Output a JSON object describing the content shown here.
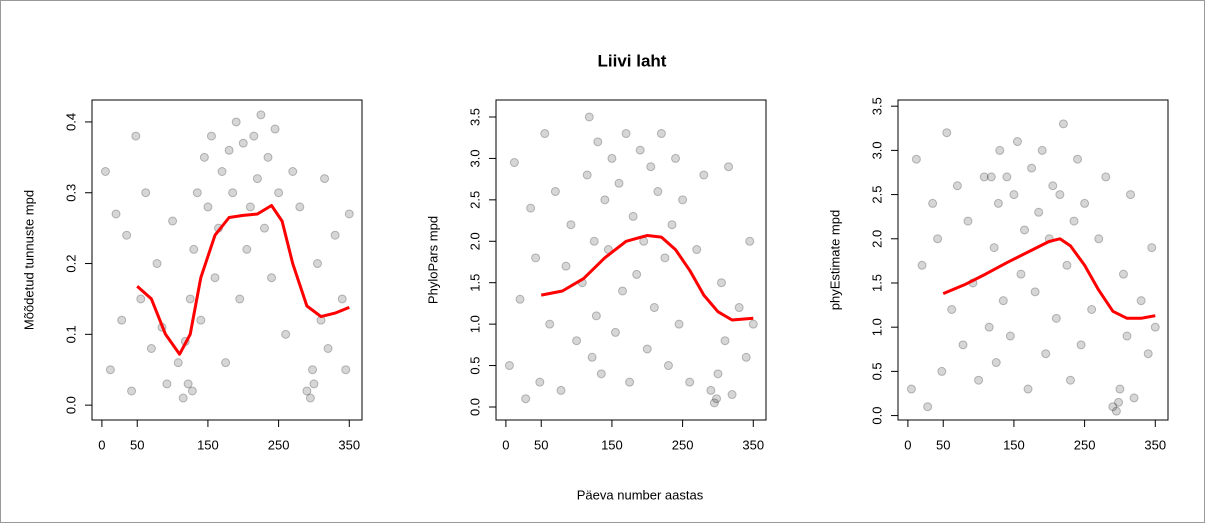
{
  "title": "Liivi laht",
  "xlabel": "Päeva number aastas",
  "chart_data": [
    {
      "type": "scatter",
      "ylabel": "Mõõdetud tunnuste mpd",
      "xlim": [
        -14,
        368
      ],
      "ylim": [
        -0.021,
        0.431
      ],
      "xticks": [
        0,
        50,
        150,
        250,
        350
      ],
      "yticks": [
        {
          "value": 0,
          "label": "0.0"
        },
        0.1,
        0.2,
        0.3,
        0.4
      ],
      "series": [
        {
          "kind": "points",
          "color": "rgba(0,0,0,0.16)",
          "x": [
            5,
            12,
            20,
            28,
            35,
            42,
            48,
            55,
            62,
            70,
            78,
            85,
            92,
            100,
            108,
            115,
            118,
            122,
            125,
            128,
            130,
            135,
            140,
            145,
            150,
            155,
            160,
            165,
            170,
            175,
            180,
            185,
            190,
            195,
            200,
            205,
            210,
            215,
            220,
            225,
            230,
            235,
            240,
            245,
            250,
            260,
            270,
            280,
            290,
            295,
            298,
            300,
            305,
            310,
            315,
            320,
            330,
            340,
            345,
            350
          ],
          "values": [
            0.33,
            0.05,
            0.27,
            0.12,
            0.24,
            0.02,
            0.38,
            0.15,
            0.3,
            0.08,
            0.2,
            0.11,
            0.03,
            0.26,
            0.06,
            0.01,
            0.09,
            0.03,
            0.15,
            0.02,
            0.22,
            0.3,
            0.12,
            0.35,
            0.28,
            0.38,
            0.18,
            0.25,
            0.33,
            0.06,
            0.36,
            0.3,
            0.4,
            0.15,
            0.37,
            0.22,
            0.28,
            0.38,
            0.32,
            0.41,
            0.25,
            0.35,
            0.18,
            0.39,
            0.3,
            0.1,
            0.33,
            0.28,
            0.02,
            0.01,
            0.05,
            0.03,
            0.2,
            0.12,
            0.32,
            0.08,
            0.24,
            0.15,
            0.05,
            0.27
          ]
        },
        {
          "kind": "line",
          "color": "#ff0000",
          "x": [
            50,
            70,
            90,
            110,
            125,
            140,
            160,
            180,
            200,
            220,
            240,
            255,
            270,
            290,
            310,
            330,
            350
          ],
          "values": [
            0.168,
            0.15,
            0.1,
            0.072,
            0.1,
            0.18,
            0.24,
            0.265,
            0.268,
            0.27,
            0.282,
            0.26,
            0.2,
            0.14,
            0.125,
            0.13,
            0.138
          ]
        }
      ]
    },
    {
      "type": "scatter",
      "ylabel": "PhyloPars mpd",
      "xlim": [
        -14,
        368
      ],
      "ylim": [
        -0.157,
        3.705
      ],
      "xticks": [
        0,
        50,
        150,
        250,
        350
      ],
      "yticks": [
        {
          "value": 0,
          "label": "0.0"
        },
        0.5,
        {
          "value": 1,
          "label": "1.0"
        },
        1.5,
        {
          "value": 2,
          "label": "2.0"
        },
        2.5,
        {
          "value": 3,
          "label": "3.0"
        },
        3.5
      ],
      "series": [
        {
          "kind": "points",
          "color": "rgba(0,0,0,0.16)",
          "x": [
            5,
            12,
            20,
            28,
            35,
            42,
            48,
            55,
            62,
            70,
            78,
            85,
            92,
            100,
            108,
            115,
            118,
            122,
            125,
            128,
            130,
            135,
            140,
            145,
            150,
            155,
            160,
            165,
            170,
            175,
            180,
            185,
            190,
            195,
            200,
            205,
            210,
            215,
            220,
            225,
            230,
            235,
            240,
            245,
            250,
            260,
            270,
            280,
            290,
            295,
            298,
            300,
            305,
            310,
            315,
            320,
            330,
            340,
            345,
            350
          ],
          "values": [
            0.5,
            2.95,
            1.3,
            0.1,
            2.4,
            1.8,
            0.3,
            3.3,
            1.0,
            2.6,
            0.2,
            1.7,
            2.2,
            0.8,
            1.5,
            2.8,
            3.5,
            0.6,
            2.0,
            1.1,
            3.2,
            0.4,
            2.5,
            1.9,
            3.0,
            0.9,
            2.7,
            1.4,
            3.3,
            0.3,
            2.3,
            1.6,
            3.1,
            2.0,
            0.7,
            2.9,
            1.2,
            2.6,
            3.3,
            1.8,
            0.5,
            2.2,
            3.0,
            1.0,
            2.5,
            0.3,
            1.9,
            2.8,
            0.2,
            0.05,
            0.1,
            0.4,
            1.5,
            0.8,
            2.9,
            0.15,
            1.2,
            0.6,
            2.0,
            1.0
          ]
        },
        {
          "kind": "line",
          "color": "#ff0000",
          "x": [
            50,
            80,
            110,
            140,
            170,
            200,
            220,
            240,
            260,
            280,
            300,
            320,
            350
          ],
          "values": [
            1.35,
            1.4,
            1.55,
            1.8,
            2.0,
            2.07,
            2.05,
            1.9,
            1.65,
            1.35,
            1.15,
            1.05,
            1.07
          ]
        }
      ]
    },
    {
      "type": "scatter",
      "ylabel": "phyEstimate mpd",
      "xlim": [
        -14,
        368
      ],
      "ylim": [
        -0.05,
        3.57
      ],
      "xticks": [
        0,
        50,
        150,
        250,
        350
      ],
      "yticks": [
        {
          "value": 0,
          "label": "0.0"
        },
        0.5,
        {
          "value": 1,
          "label": "1.0"
        },
        1.5,
        {
          "value": 2,
          "label": "2.0"
        },
        2.5,
        {
          "value": 3,
          "label": "3.0"
        },
        3.5
      ],
      "series": [
        {
          "kind": "points",
          "color": "rgba(0,0,0,0.16)",
          "x": [
            5,
            12,
            20,
            28,
            35,
            42,
            48,
            55,
            62,
            70,
            78,
            85,
            92,
            100,
            108,
            115,
            118,
            122,
            125,
            128,
            130,
            135,
            140,
            145,
            150,
            155,
            160,
            165,
            170,
            175,
            180,
            185,
            190,
            195,
            200,
            205,
            210,
            215,
            220,
            225,
            230,
            235,
            240,
            245,
            250,
            260,
            270,
            280,
            290,
            295,
            298,
            300,
            305,
            310,
            315,
            320,
            330,
            340,
            345,
            350
          ],
          "values": [
            0.3,
            2.9,
            1.7,
            0.1,
            2.4,
            2.0,
            0.5,
            3.2,
            1.2,
            2.6,
            0.8,
            2.2,
            1.5,
            0.4,
            2.7,
            1.0,
            2.7,
            1.9,
            0.6,
            2.4,
            3.0,
            1.3,
            2.7,
            0.9,
            2.5,
            3.1,
            1.6,
            2.1,
            0.3,
            2.8,
            1.4,
            2.3,
            3.0,
            0.7,
            2.0,
            2.6,
            1.1,
            2.5,
            3.3,
            1.7,
            0.4,
            2.2,
            2.9,
            0.8,
            2.4,
            1.2,
            2.0,
            2.7,
            0.1,
            0.05,
            0.15,
            0.3,
            1.6,
            0.9,
            2.5,
            0.2,
            1.3,
            0.7,
            1.9,
            1.0
          ]
        },
        {
          "kind": "line",
          "color": "#ff0000",
          "x": [
            50,
            80,
            110,
            140,
            170,
            200,
            215,
            230,
            250,
            270,
            290,
            310,
            330,
            350
          ],
          "values": [
            1.38,
            1.48,
            1.6,
            1.73,
            1.85,
            1.97,
            2.0,
            1.92,
            1.7,
            1.42,
            1.18,
            1.1,
            1.1,
            1.13
          ]
        }
      ]
    }
  ]
}
